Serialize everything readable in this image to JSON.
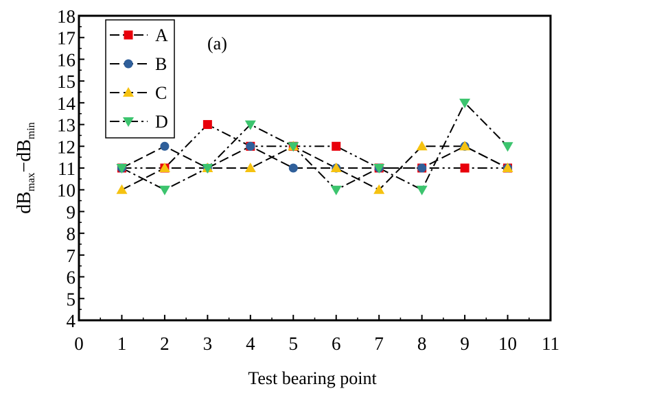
{
  "chart_data": {
    "type": "line",
    "panel_label": "(a)",
    "xlabel": "Test bearing point",
    "ylabel": {
      "main1": "dB",
      "sub1": "max",
      "sep": "−dB",
      "sub2": "min"
    },
    "x": [
      1,
      2,
      3,
      4,
      5,
      6,
      7,
      8,
      9,
      10
    ],
    "xlim": [
      0,
      11
    ],
    "ylim": [
      4,
      18
    ],
    "xticks": [
      0,
      1,
      2,
      3,
      4,
      5,
      6,
      7,
      8,
      9,
      10,
      11
    ],
    "yticks": [
      4,
      5,
      6,
      7,
      8,
      9,
      10,
      11,
      12,
      13,
      14,
      15,
      16,
      17,
      18
    ],
    "grid": false,
    "legend_position": "top-left",
    "series": [
      {
        "name": "A",
        "marker": "square",
        "color": "#e8000b",
        "dash": "dash-dot-dot",
        "values": [
          11,
          11,
          13,
          12,
          12,
          12,
          11,
          11,
          11,
          11
        ]
      },
      {
        "name": "B",
        "marker": "circle",
        "color": "#2f5f9a",
        "dash": "dash",
        "values": [
          11,
          12,
          11,
          12,
          11,
          11,
          11,
          11,
          12,
          11
        ]
      },
      {
        "name": "C",
        "marker": "triangle-up",
        "color": "#f5c211",
        "dash": "dash",
        "values": [
          10,
          11,
          11,
          11,
          12,
          11,
          10,
          12,
          12,
          11
        ]
      },
      {
        "name": "D",
        "marker": "triangle-down",
        "color": "#3cc46e",
        "dash": "dash-dot",
        "values": [
          11,
          10,
          11,
          13,
          12,
          10,
          11,
          10,
          14,
          12
        ]
      }
    ]
  }
}
